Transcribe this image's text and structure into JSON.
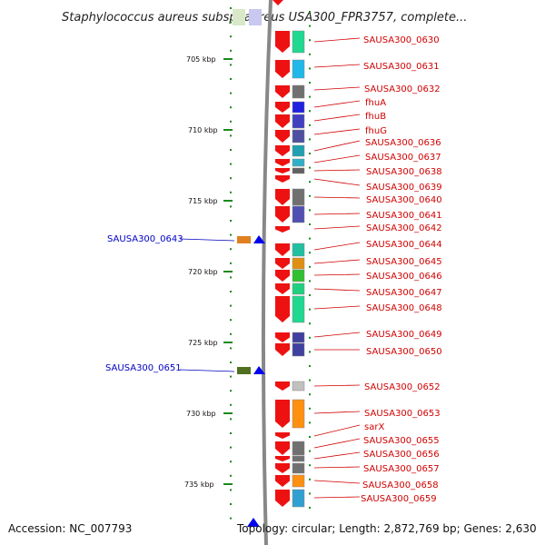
{
  "title": "Staphylococcus aureus subsp. aureus USA300_FPR3757, complete...",
  "accession": "Accession: NC_007793",
  "topology": "Topology: circular; Length: 2,872,769 bp; Genes: 2,630",
  "scale_ticks": [
    "705 kbp",
    "710 kbp",
    "715 kbp",
    "720 kbp",
    "725 kbp",
    "730 kbp",
    "735 kbp"
  ],
  "forward_genes": [
    "SAUSA300_0643",
    "SAUSA300_0651"
  ],
  "reverse_genes": [
    "SAUSA300_0630",
    "SAUSA300_0631",
    "SAUSA300_0632",
    "fhuA",
    "fhuB",
    "fhuG",
    "SAUSA300_0636",
    "SAUSA300_0637",
    "SAUSA300_0638",
    "SAUSA300_0639",
    "SAUSA300_0640",
    "SAUSA300_0641",
    "SAUSA300_0642",
    "SAUSA300_0644",
    "SAUSA300_0645",
    "SAUSA300_0646",
    "SAUSA300_0647",
    "SAUSA300_0648",
    "SAUSA300_0649",
    "SAUSA300_0650",
    "SAUSA300_0652",
    "SAUSA300_0653",
    "sarX",
    "SAUSA300_0655",
    "SAUSA300_0656",
    "SAUSA300_0657",
    "SAUSA300_0658",
    "SAUSA300_0659"
  ],
  "colors": {
    "reverse_strand": "#ee1111",
    "forward_strand": "#0000ee",
    "reverse_label": "#d00000",
    "forward_label": "#0000c0",
    "tick": "#1a8a1a",
    "backbone": "#888888"
  }
}
